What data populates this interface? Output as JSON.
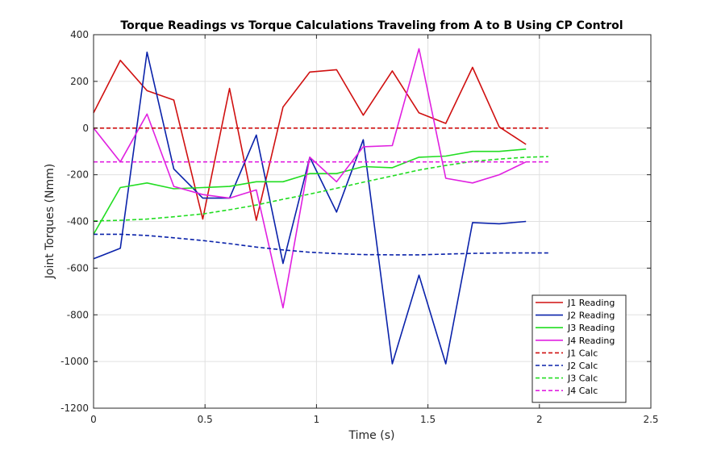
{
  "chart_data": {
    "type": "line",
    "title": "Torque Readings vs Torque Calculations Traveling from A to B Using CP Control",
    "xlabel": "Time (s)",
    "ylabel": "Joint Torques (Nmm)",
    "xlim": [
      0,
      2.5
    ],
    "ylim": [
      -1200,
      400
    ],
    "xticks": [
      0,
      0.5,
      1,
      1.5,
      2,
      2.5
    ],
    "xtick_labels": [
      "0",
      "0.5",
      "1",
      "1.5",
      "2",
      "2.5"
    ],
    "yticks": [
      400,
      200,
      0,
      -200,
      -400,
      -600,
      -800,
      -1000,
      -1200
    ],
    "ytick_labels": [
      "400",
      "200",
      "0",
      "-200",
      "-400",
      "-600",
      "-800",
      "-1000",
      "-1200"
    ],
    "grid": true,
    "legend_position": "bottom-right",
    "series": [
      {
        "name": "J1 Reading",
        "color": "#d01010",
        "dash": "solid",
        "x": [
          0,
          0.12,
          0.24,
          0.36,
          0.49,
          0.61,
          0.73,
          0.85,
          0.97,
          1.09,
          1.21,
          1.34,
          1.46,
          1.58,
          1.7,
          1.82,
          1.94
        ],
        "y": [
          65,
          290,
          160,
          120,
          -390,
          170,
          -395,
          90,
          240,
          250,
          55,
          245,
          65,
          20,
          260,
          5,
          -70
        ]
      },
      {
        "name": "J2 Reading",
        "color": "#0a22aa",
        "dash": "solid",
        "x": [
          0,
          0.12,
          0.24,
          0.36,
          0.49,
          0.61,
          0.73,
          0.85,
          0.97,
          1.09,
          1.21,
          1.34,
          1.46,
          1.58,
          1.7,
          1.82,
          1.94
        ],
        "y": [
          -560,
          -515,
          325,
          -175,
          -300,
          -300,
          -30,
          -580,
          -125,
          -360,
          -50,
          -1010,
          -630,
          -1010,
          -405,
          -410,
          -400
        ]
      },
      {
        "name": "J3 Reading",
        "color": "#22dd22",
        "dash": "solid",
        "x": [
          0,
          0.12,
          0.24,
          0.36,
          0.49,
          0.61,
          0.73,
          0.85,
          0.97,
          1.09,
          1.21,
          1.34,
          1.46,
          1.58,
          1.7,
          1.82,
          1.94
        ],
        "y": [
          -455,
          -255,
          -235,
          -260,
          -255,
          -250,
          -230,
          -230,
          -195,
          -195,
          -165,
          -170,
          -125,
          -120,
          -100,
          -100,
          -90
        ]
      },
      {
        "name": "J4 Reading",
        "color": "#e020e0",
        "dash": "solid",
        "x": [
          0,
          0.12,
          0.24,
          0.36,
          0.49,
          0.61,
          0.73,
          0.85,
          0.97,
          1.09,
          1.21,
          1.34,
          1.46,
          1.58,
          1.7,
          1.82,
          1.94
        ],
        "y": [
          0,
          -145,
          60,
          -250,
          -285,
          -300,
          -265,
          -770,
          -125,
          -230,
          -80,
          -75,
          340,
          -215,
          -235,
          -200,
          -145
        ]
      },
      {
        "name": "J1 Calc",
        "color": "#d01010",
        "dash": "dashed",
        "x": [
          0,
          0.25,
          0.5,
          0.75,
          1.0,
          1.25,
          1.5,
          1.75,
          2.04
        ],
        "y": [
          0,
          0,
          0,
          0,
          0,
          0,
          0,
          0,
          0
        ]
      },
      {
        "name": "J2 Calc",
        "color": "#0a22aa",
        "dash": "dashed",
        "x": [
          0,
          0.12,
          0.24,
          0.36,
          0.49,
          0.61,
          0.73,
          0.85,
          0.97,
          1.09,
          1.21,
          1.34,
          1.46,
          1.58,
          1.7,
          1.82,
          1.94,
          2.04
        ],
        "y": [
          -455,
          -455,
          -460,
          -470,
          -482,
          -495,
          -510,
          -522,
          -532,
          -538,
          -542,
          -543,
          -543,
          -540,
          -537,
          -535,
          -535,
          -535
        ]
      },
      {
        "name": "J3 Calc",
        "color": "#22dd22",
        "dash": "dashed",
        "x": [
          0,
          0.12,
          0.24,
          0.36,
          0.49,
          0.61,
          0.73,
          0.85,
          0.97,
          1.09,
          1.21,
          1.34,
          1.46,
          1.58,
          1.7,
          1.82,
          1.94,
          2.04
        ],
        "y": [
          -398,
          -395,
          -390,
          -380,
          -368,
          -350,
          -330,
          -305,
          -283,
          -258,
          -232,
          -205,
          -180,
          -160,
          -143,
          -133,
          -125,
          -122
        ]
      },
      {
        "name": "J4 Calc",
        "color": "#e020e0",
        "dash": "dashed",
        "x": [
          0,
          0.5,
          1.0,
          1.5,
          2.04
        ],
        "y": [
          -145,
          -145,
          -145,
          -145,
          -145
        ]
      }
    ]
  }
}
